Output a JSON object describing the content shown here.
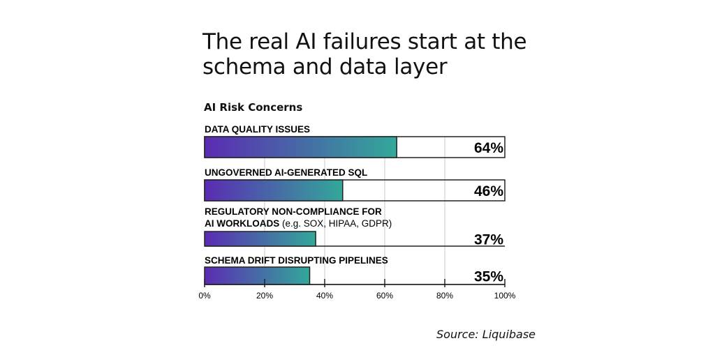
{
  "header": {
    "title_line1": "The real AI failures start at the",
    "title_line2": "schema and data layer"
  },
  "source": "Source: Liquibase",
  "colors": {
    "gradient_start": "#5b2bb3",
    "gradient_end": "#33a89a"
  },
  "chart_data": {
    "type": "bar",
    "orientation": "horizontal",
    "title": "AI Risk Concerns",
    "categories": [
      {
        "label": "DATA QUALITY ISSUES",
        "note": ""
      },
      {
        "label": "UNGOVERNED AI-GENERATED SQL",
        "note": ""
      },
      {
        "label": "REGULATORY NON-COMPLIANCE FOR",
        "label2": "AI WORKLOADS",
        "note": "(e.g. SOX, HIPAA, GDPR)"
      },
      {
        "label": "SCHEMA DRIFT DISRUPTING PIPELINES",
        "note": ""
      }
    ],
    "values": [
      64,
      46,
      37,
      35
    ],
    "value_labels": [
      "64%",
      "46%",
      "37%",
      "35%"
    ],
    "xlim": [
      0,
      100
    ],
    "xticks": [
      "0%",
      "20%",
      "40%",
      "60%",
      "80%",
      "100%"
    ],
    "grid": true
  }
}
